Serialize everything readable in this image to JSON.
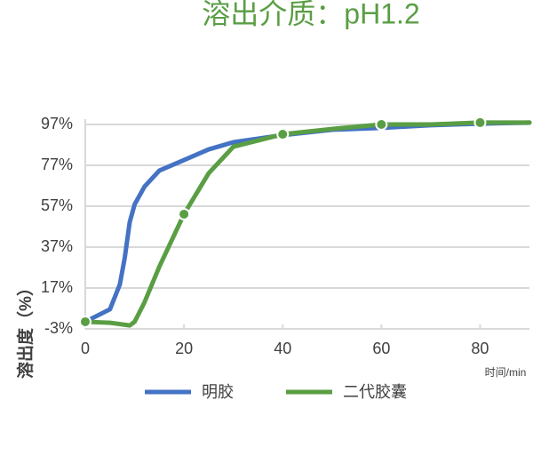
{
  "chart_data": {
    "type": "line",
    "title": "溶出介质：pH1.2",
    "x_label": "时间/min",
    "y_label": "溶出度（%）",
    "xlim": [
      0,
      90
    ],
    "xticks": [
      0,
      20,
      40,
      60,
      80
    ],
    "ylim": [
      -3,
      97
    ],
    "yticks": [
      {
        "value": -3,
        "label": "-3%"
      },
      {
        "value": 17,
        "label": "17%"
      },
      {
        "value": 37,
        "label": "37%"
      },
      {
        "value": 57,
        "label": "57%"
      },
      {
        "value": 77,
        "label": "77%"
      },
      {
        "value": 97,
        "label": "97%"
      }
    ],
    "grid": true,
    "legend": "bottom",
    "series": [
      {
        "name": "明胶",
        "color": "#4472c4",
        "x": [
          0,
          5,
          7,
          8,
          9,
          10,
          12,
          15,
          20,
          25,
          30,
          40,
          50,
          60,
          70,
          80,
          90
        ],
        "values": [
          0.5,
          6.6,
          18.7,
          31.8,
          49.2,
          57.9,
          66.6,
          74.4,
          79.6,
          84.8,
          88.3,
          91.8,
          94.4,
          95.3,
          96.6,
          97.4,
          97.9
        ]
      },
      {
        "name": "二代胶囊",
        "color": "#5a9e44",
        "x": [
          0,
          5,
          9,
          10,
          12,
          15,
          20,
          25,
          30,
          40,
          50,
          60,
          70,
          80,
          90
        ],
        "values": [
          0.5,
          0,
          -1.3,
          0.5,
          10,
          27.4,
          53.1,
          73.1,
          86.1,
          92.2,
          94.8,
          97,
          97,
          97.9,
          97.9
        ]
      }
    ]
  }
}
